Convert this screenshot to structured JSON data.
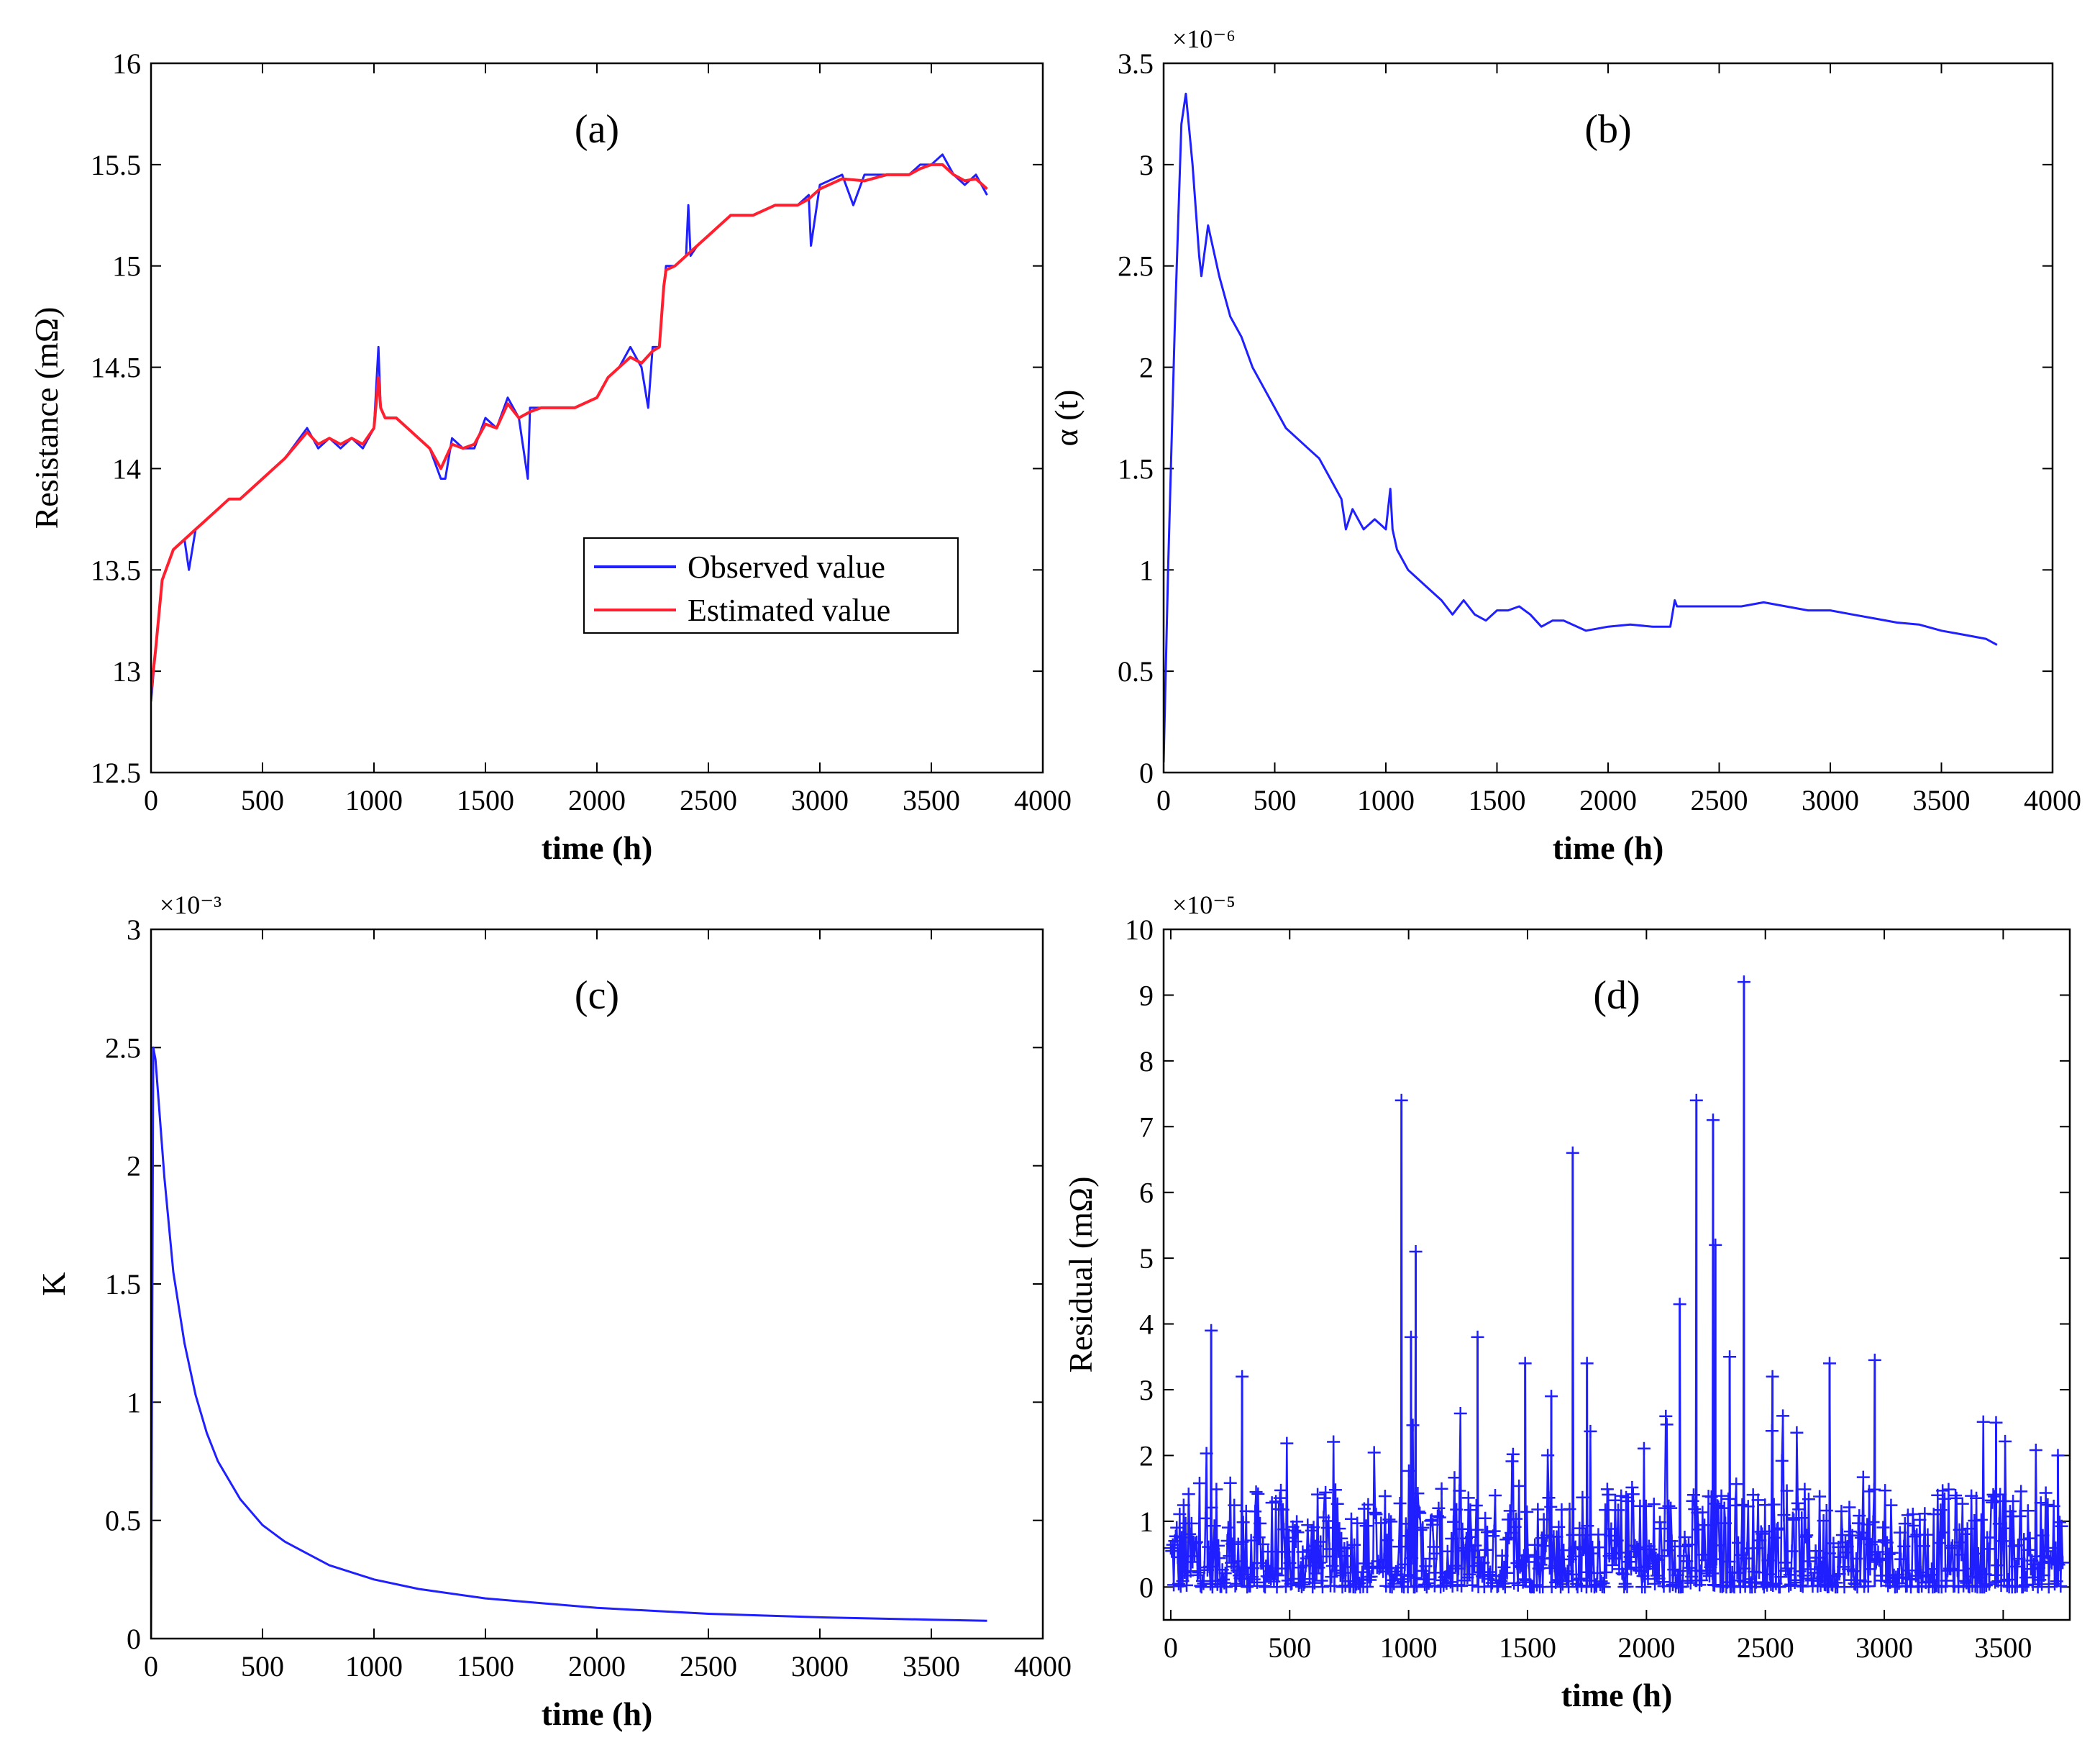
{
  "colors": {
    "observed": "#1f1fff",
    "estimated": "#ff1f2e",
    "blue": "#1f1fff",
    "axis": "#000000"
  },
  "chart_data": [
    {
      "id": "a",
      "type": "line",
      "title": "(a)",
      "xlabel": "time (h)",
      "ylabel": "Resistance (mΩ)",
      "xlim": [
        0,
        4000
      ],
      "ylim": [
        12.5,
        16
      ],
      "xticks": [
        0,
        500,
        1000,
        1500,
        2000,
        2500,
        3000,
        3500,
        4000
      ],
      "yticks": [
        12.5,
        13,
        13.5,
        14,
        14.5,
        15,
        15.5,
        16
      ],
      "legend": {
        "position": "center-right",
        "entries": [
          "Observed value",
          "Estimated value"
        ]
      },
      "series": [
        {
          "name": "Observed value",
          "x": [
            0,
            20,
            50,
            100,
            150,
            170,
            200,
            250,
            300,
            350,
            400,
            450,
            500,
            600,
            700,
            750,
            800,
            850,
            900,
            950,
            1000,
            1020,
            1030,
            1050,
            1100,
            1200,
            1250,
            1300,
            1320,
            1350,
            1400,
            1450,
            1500,
            1550,
            1600,
            1650,
            1690,
            1700,
            1750,
            1800,
            1900,
            2000,
            2050,
            2100,
            2150,
            2200,
            2230,
            2250,
            2280,
            2300,
            2310,
            2350,
            2400,
            2410,
            2420,
            2450,
            2500,
            2600,
            2700,
            2800,
            2900,
            2950,
            2960,
            3000,
            3100,
            3150,
            3200,
            3300,
            3400,
            3450,
            3500,
            3550,
            3600,
            3650,
            3700,
            3750
          ],
          "y": [
            12.85,
            13.1,
            13.45,
            13.6,
            13.65,
            13.5,
            13.7,
            13.75,
            13.8,
            13.85,
            13.85,
            13.9,
            13.95,
            14.05,
            14.2,
            14.1,
            14.15,
            14.1,
            14.15,
            14.1,
            14.2,
            14.6,
            14.3,
            14.25,
            14.25,
            14.15,
            14.1,
            13.95,
            13.95,
            14.15,
            14.1,
            14.1,
            14.25,
            14.2,
            14.35,
            14.25,
            13.95,
            14.3,
            14.3,
            14.3,
            14.3,
            14.35,
            14.45,
            14.5,
            14.6,
            14.5,
            14.3,
            14.6,
            14.6,
            14.9,
            15.0,
            15.0,
            15.05,
            15.3,
            15.05,
            15.1,
            15.15,
            15.25,
            15.25,
            15.3,
            15.3,
            15.35,
            15.1,
            15.4,
            15.45,
            15.3,
            15.45,
            15.45,
            15.45,
            15.5,
            15.5,
            15.55,
            15.45,
            15.4,
            15.45,
            15.35
          ]
        },
        {
          "name": "Estimated value",
          "x": [
            0,
            20,
            50,
            100,
            150,
            200,
            250,
            300,
            350,
            400,
            450,
            500,
            600,
            700,
            750,
            800,
            850,
            900,
            950,
            1000,
            1020,
            1030,
            1050,
            1100,
            1200,
            1250,
            1300,
            1350,
            1400,
            1450,
            1500,
            1550,
            1600,
            1650,
            1700,
            1750,
            1800,
            1900,
            2000,
            2050,
            2100,
            2150,
            2200,
            2250,
            2280,
            2300,
            2310,
            2350,
            2400,
            2450,
            2500,
            2600,
            2700,
            2800,
            2900,
            2950,
            3000,
            3100,
            3200,
            3300,
            3400,
            3450,
            3500,
            3550,
            3600,
            3650,
            3700,
            3750
          ],
          "y": [
            12.9,
            13.1,
            13.45,
            13.6,
            13.65,
            13.7,
            13.75,
            13.8,
            13.85,
            13.85,
            13.9,
            13.95,
            14.05,
            14.18,
            14.12,
            14.15,
            14.12,
            14.15,
            14.12,
            14.2,
            14.45,
            14.3,
            14.25,
            14.25,
            14.15,
            14.1,
            14.0,
            14.12,
            14.1,
            14.12,
            14.22,
            14.2,
            14.32,
            14.25,
            14.28,
            14.3,
            14.3,
            14.3,
            14.35,
            14.45,
            14.5,
            14.55,
            14.52,
            14.58,
            14.6,
            14.9,
            14.98,
            15.0,
            15.05,
            15.1,
            15.15,
            15.25,
            15.25,
            15.3,
            15.3,
            15.33,
            15.38,
            15.43,
            15.42,
            15.45,
            15.45,
            15.48,
            15.5,
            15.5,
            15.45,
            15.42,
            15.43,
            15.38
          ]
        }
      ]
    },
    {
      "id": "b",
      "type": "line",
      "title": "(b)",
      "xlabel": "time (h)",
      "ylabel": "α (t)",
      "multiplier": "×10⁻⁶",
      "xlim": [
        0,
        4000
      ],
      "ylim": [
        0,
        3.5
      ],
      "xticks": [
        0,
        500,
        1000,
        1500,
        2000,
        2500,
        3000,
        3500,
        4000
      ],
      "yticks": [
        0,
        0.5,
        1,
        1.5,
        2,
        2.5,
        3,
        3.5
      ],
      "series": [
        {
          "name": "α (t)",
          "x": [
            0,
            20,
            50,
            80,
            100,
            130,
            160,
            170,
            200,
            230,
            250,
            300,
            350,
            400,
            450,
            500,
            550,
            600,
            650,
            700,
            750,
            800,
            820,
            850,
            900,
            950,
            1000,
            1020,
            1030,
            1050,
            1100,
            1150,
            1200,
            1250,
            1300,
            1350,
            1400,
            1450,
            1500,
            1550,
            1600,
            1650,
            1700,
            1750,
            1800,
            1900,
            2000,
            2100,
            2200,
            2250,
            2280,
            2300,
            2310,
            2350,
            2400,
            2500,
            2600,
            2700,
            2800,
            2900,
            3000,
            3100,
            3200,
            3300,
            3400,
            3500,
            3600,
            3700,
            3750
          ],
          "y": [
            0.05,
            1.0,
            2.2,
            3.2,
            3.35,
            3.0,
            2.55,
            2.45,
            2.7,
            2.55,
            2.45,
            2.25,
            2.15,
            2.0,
            1.9,
            1.8,
            1.7,
            1.65,
            1.6,
            1.55,
            1.45,
            1.35,
            1.2,
            1.3,
            1.2,
            1.25,
            1.2,
            1.4,
            1.2,
            1.1,
            1.0,
            0.95,
            0.9,
            0.85,
            0.78,
            0.85,
            0.78,
            0.75,
            0.8,
            0.8,
            0.82,
            0.78,
            0.72,
            0.75,
            0.75,
            0.7,
            0.72,
            0.73,
            0.72,
            0.72,
            0.72,
            0.85,
            0.82,
            0.82,
            0.82,
            0.82,
            0.82,
            0.84,
            0.82,
            0.8,
            0.8,
            0.78,
            0.76,
            0.74,
            0.73,
            0.7,
            0.68,
            0.66,
            0.63
          ]
        }
      ]
    },
    {
      "id": "c",
      "type": "line",
      "title": "(c)",
      "xlabel": "time (h)",
      "ylabel": "K",
      "multiplier": "×10⁻³",
      "xlim": [
        0,
        4000
      ],
      "ylim": [
        0,
        3
      ],
      "xticks": [
        0,
        500,
        1000,
        1500,
        2000,
        2500,
        3000,
        3500,
        4000
      ],
      "yticks": [
        0,
        0.5,
        1,
        1.5,
        2,
        2.5,
        3
      ],
      "series": [
        {
          "name": "K",
          "x": [
            0,
            10,
            20,
            40,
            60,
            80,
            100,
            150,
            200,
            250,
            300,
            400,
            500,
            600,
            700,
            800,
            1000,
            1200,
            1500,
            2000,
            2500,
            3000,
            3500,
            3750
          ],
          "y": [
            0,
            2.5,
            2.45,
            2.2,
            1.95,
            1.75,
            1.55,
            1.25,
            1.03,
            0.87,
            0.75,
            0.59,
            0.48,
            0.41,
            0.36,
            0.31,
            0.25,
            0.21,
            0.17,
            0.13,
            0.105,
            0.09,
            0.08,
            0.075
          ]
        }
      ]
    },
    {
      "id": "d",
      "type": "line",
      "title": "(d)",
      "xlabel": "time (h)",
      "ylabel": "Residual (mΩ)",
      "multiplier": "×10⁻⁵",
      "xlim": [
        -30,
        3780
      ],
      "ylim": [
        -0.5,
        10
      ],
      "xticks": [
        0,
        500,
        1000,
        1500,
        2000,
        2500,
        3000,
        3500
      ],
      "yticks": [
        0,
        1,
        2,
        3,
        4,
        5,
        6,
        7,
        8,
        9,
        10
      ],
      "marker": "+",
      "peaks": [
        {
          "x": 170,
          "y": 3.9
        },
        {
          "x": 300,
          "y": 3.2
        },
        {
          "x": 970,
          "y": 7.4
        },
        {
          "x": 1010,
          "y": 3.8
        },
        {
          "x": 1030,
          "y": 5.1
        },
        {
          "x": 1290,
          "y": 3.8
        },
        {
          "x": 1490,
          "y": 3.4
        },
        {
          "x": 1600,
          "y": 2.9
        },
        {
          "x": 1690,
          "y": 6.6
        },
        {
          "x": 1750,
          "y": 3.4
        },
        {
          "x": 2140,
          "y": 4.3
        },
        {
          "x": 2210,
          "y": 7.4
        },
        {
          "x": 2280,
          "y": 7.1
        },
        {
          "x": 2290,
          "y": 5.2
        },
        {
          "x": 2350,
          "y": 3.5
        },
        {
          "x": 2410,
          "y": 9.2
        },
        {
          "x": 2530,
          "y": 3.2
        },
        {
          "x": 2770,
          "y": 3.4
        },
        {
          "x": 2960,
          "y": 3.45
        },
        {
          "x": 3470,
          "y": 2.5
        },
        {
          "x": 3730,
          "y": 2.0
        }
      ],
      "noise_x_range": [
        0,
        3750
      ],
      "noise_typical_max": 1.5,
      "noise_points": 900
    }
  ]
}
